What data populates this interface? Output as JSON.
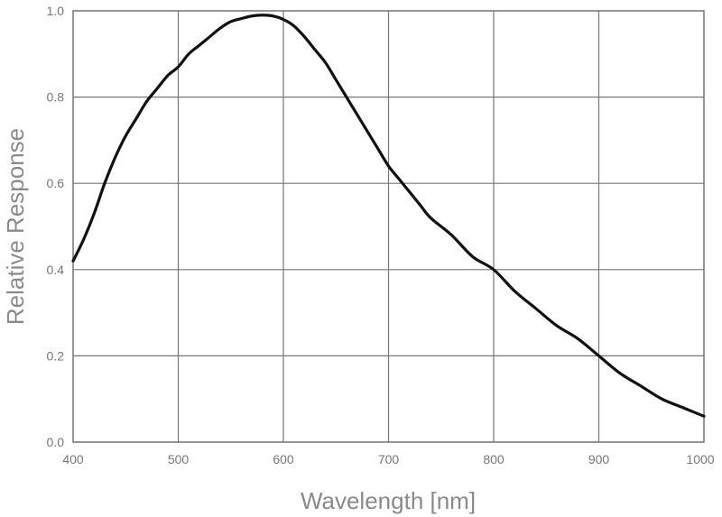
{
  "chart_data": {
    "type": "line",
    "title": "",
    "xlabel": "Wavelength [nm]",
    "ylabel": "Relative Response",
    "xlim": [
      400,
      1000
    ],
    "ylim": [
      0.0,
      1.0
    ],
    "grid": true,
    "x_ticks": [
      "400",
      "500",
      "600",
      "700",
      "800",
      "900",
      "1000"
    ],
    "y_ticks": [
      "0.0",
      "0.2",
      "0.4",
      "0.6",
      "0.8",
      "1.0"
    ],
    "series": [
      {
        "color": "#111111",
        "x": [
          400,
          410,
          420,
          430,
          440,
          450,
          460,
          470,
          480,
          490,
          500,
          510,
          520,
          530,
          540,
          550,
          560,
          570,
          580,
          590,
          600,
          610,
          620,
          630,
          640,
          650,
          660,
          670,
          680,
          690,
          700,
          710,
          720,
          730,
          740,
          760,
          780,
          800,
          820,
          840,
          860,
          880,
          900,
          920,
          940,
          960,
          980,
          1000
        ],
        "y": [
          0.42,
          0.47,
          0.53,
          0.6,
          0.66,
          0.71,
          0.75,
          0.79,
          0.82,
          0.85,
          0.87,
          0.9,
          0.92,
          0.94,
          0.96,
          0.975,
          0.982,
          0.988,
          0.99,
          0.988,
          0.98,
          0.965,
          0.94,
          0.91,
          0.88,
          0.84,
          0.8,
          0.76,
          0.72,
          0.68,
          0.64,
          0.61,
          0.58,
          0.55,
          0.52,
          0.48,
          0.43,
          0.4,
          0.35,
          0.31,
          0.27,
          0.24,
          0.2,
          0.16,
          0.13,
          0.1,
          0.08,
          0.06
        ]
      }
    ]
  }
}
